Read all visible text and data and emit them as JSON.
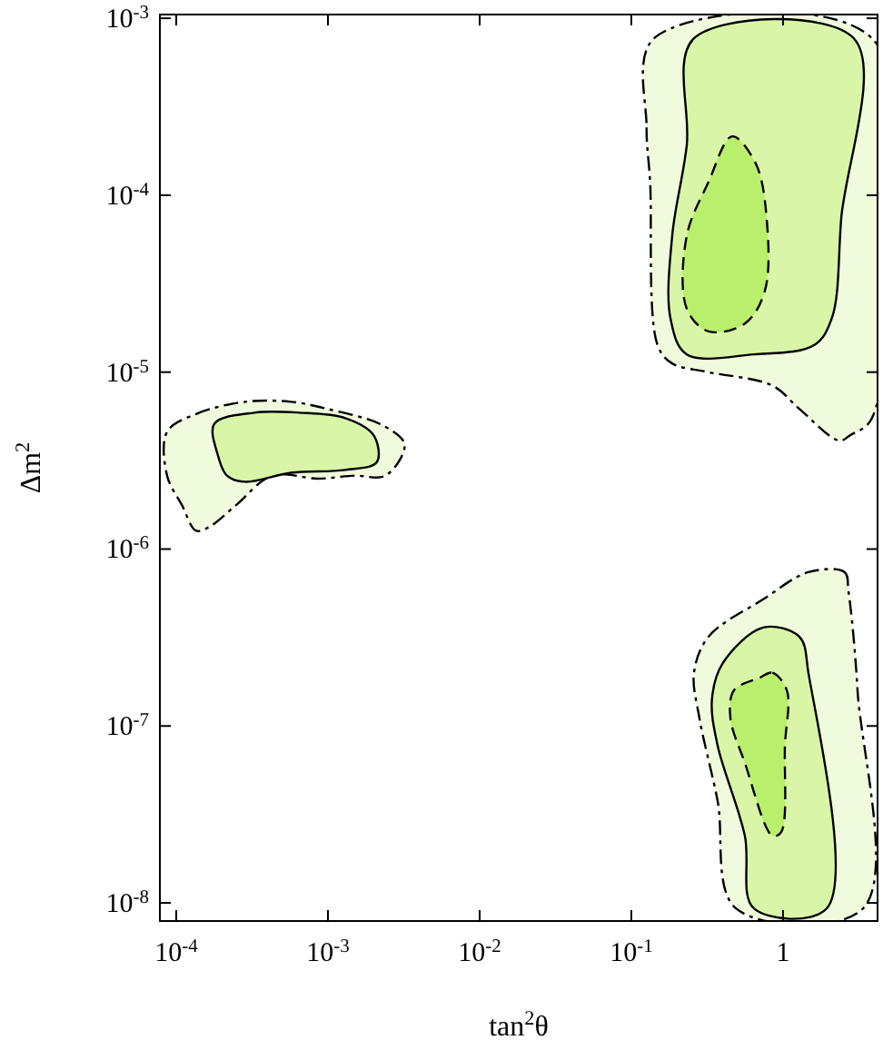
{
  "chart_data": {
    "type": "area",
    "xlabel": "tan$^{2}$θ",
    "ylabel": "Δm$^{2}$",
    "log": "xy",
    "xlim": [
      7.8e-05,
      4.2
    ],
    "ylim": [
      7.9e-09,
      0.00105
    ],
    "xticks": [
      {
        "value": 0.0001,
        "label": "10$^{-4}$"
      },
      {
        "value": 0.001,
        "label": "10$^{-3}$"
      },
      {
        "value": 0.01,
        "label": "10$^{-2}$"
      },
      {
        "value": 0.1,
        "label": "10$^{-1}$"
      },
      1
    ],
    "yticks": [
      {
        "value": 1e-08,
        "label": "10$^{-8}$"
      },
      {
        "value": 1e-07,
        "label": "10$^{-7}$"
      },
      {
        "value": 1e-06,
        "label": "10$^{-6}$"
      },
      {
        "value": 1e-05,
        "label": "10$^{-5}$"
      },
      {
        "value": 0.0001,
        "label": "10$^{-4}$"
      },
      {
        "value": 0.001,
        "label": "10$^{-3}$"
      }
    ],
    "grid": false,
    "series": [
      {
        "color": "#effbdc",
        "line_style": "dashdot",
        "x": [
          0.141,
          0.126,
          0.133,
          0.149,
          0.186,
          0.323,
          0.85,
          1.28,
          2.35,
          2.77,
          3.86,
          3.86
        ],
        "values": [
          0.00077,
          0.000242,
          0.000119,
          1.42e-05,
          1.12e-05,
          1e-05,
          8.4e-06,
          6.2e-06,
          4.1e-06,
          4.4e-06,
          5.5e-06,
          0.00077
        ]
      },
      {
        "color": "#effbdc",
        "line_style": "dashdot",
        "x": [
          8.7e-05,
          0.000135,
          0.000285,
          0.00057,
          0.00099,
          0.0023,
          0.0032,
          0.0024,
          0.0015,
          0.00086,
          0.00043,
          0.000248,
          0.000164,
          0.000135,
          0.000109,
          8.7e-05
        ],
        "values": [
          4.6e-06,
          5.8e-06,
          6.8e-06,
          6.8e-06,
          6.2e-06,
          5e-06,
          3.9e-06,
          2.6e-06,
          2.6e-06,
          2.5e-06,
          2.6e-06,
          1.77e-06,
          1.33e-06,
          1.27e-06,
          1.77e-06,
          2.6e-06
        ]
      },
      {
        "color": "#effbdc",
        "line_style": "dashdot",
        "x": [
          1.47,
          2.55,
          2.7,
          3.1,
          3.37,
          0.49,
          0.37,
          0.281,
          0.259,
          0.323,
          0.74
        ],
        "values": [
          7.4e-07,
          7.4e-07,
          5.8e-07,
          1.59e-07,
          9.3e-09,
          9.3e-09,
          3.8e-08,
          1.11e-07,
          2e-07,
          3.2e-07,
          5.2e-07
        ]
      },
      {
        "color": "#d9f6a8",
        "line_style": "solid",
        "x": [
          0.259,
          0.232,
          0.186,
          0.181,
          0.232,
          0.643,
          1.6,
          2.1,
          2.42,
          2.93
        ],
        "values": [
          0.00077,
          0.000191,
          5.9e-05,
          2.02e-05,
          1.26e-05,
          1.26e-05,
          1.42e-05,
          2.02e-05,
          7.4e-05,
          0.00077
        ]
      },
      {
        "color": "#d9f6a8",
        "line_style": "solid",
        "x": [
          0.000178,
          0.000327,
          0.00065,
          0.0013,
          0.002,
          0.0021,
          0.0013,
          0.00057,
          0.000285,
          0.000216,
          0.000188
        ],
        "values": [
          5.1e-06,
          5.9e-06,
          5.9e-06,
          5.5e-06,
          4.4e-06,
          3.1e-06,
          2.8e-06,
          2.7e-06,
          2.4e-06,
          2.6e-06,
          3.4e-06
        ]
      },
      {
        "color": "#d9f6a8",
        "line_style": "solid",
        "x": [
          0.4,
          0.74,
          1.28,
          1.47,
          1.94,
          0.643,
          0.56,
          0.37,
          0.34
        ],
        "values": [
          2.26e-07,
          3.6e-07,
          3.2e-07,
          2e-07,
          9.3e-09,
          9.3e-09,
          2.4e-08,
          7.8e-08,
          1.41e-07
        ]
      },
      {
        "color": "#b9ef6c",
        "line_style": "dashed",
        "x": [
          0.462,
          0.323,
          0.232,
          0.232,
          0.323,
          0.56,
          0.759,
          0.78,
          0.661
        ],
        "values": [
          0.000215,
          0.000119,
          5.9e-05,
          2.28e-05,
          1.7e-05,
          1.88e-05,
          2.88e-05,
          7.4e-05,
          0.000151
        ]
      },
      {
        "color": "#b9ef6c",
        "line_style": "dashed",
        "x": [
          0.7,
          0.85,
          1.06,
          1.03,
          0.97,
          0.85,
          0.56,
          0.45,
          0.475
        ],
        "values": [
          1.87e-07,
          2e-07,
          1.59e-07,
          7.8e-08,
          2.5e-08,
          2.4e-08,
          6.2e-08,
          1.11e-07,
          1.59e-07
        ]
      }
    ]
  }
}
